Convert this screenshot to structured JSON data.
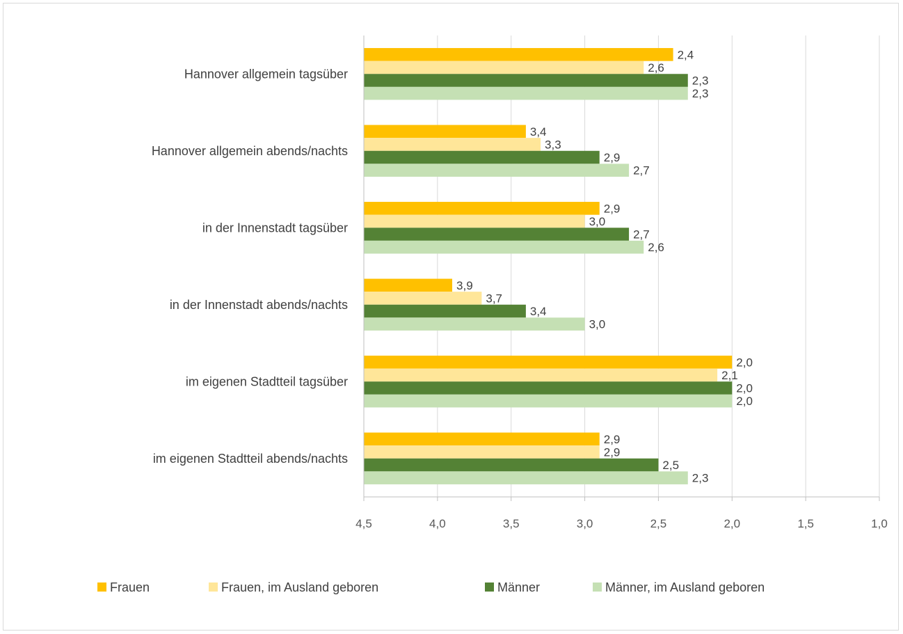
{
  "chart_data": {
    "type": "bar",
    "orientation": "horizontal",
    "x_axis_reversed": true,
    "xlim": [
      1.0,
      4.5
    ],
    "x_ticks": [
      4.5,
      4.0,
      3.5,
      3.0,
      2.5,
      2.0,
      1.5,
      1.0
    ],
    "x_tick_labels": [
      "4,5",
      "4,0",
      "3,5",
      "3,0",
      "2,5",
      "2,0",
      "1,5",
      "1,0"
    ],
    "grid": true,
    "legend_position": "bottom",
    "categories": [
      "Hannover allgemein tagsüber",
      "Hannover allgemein abends/nachts",
      "in der Innenstadt tagsüber",
      "in der Innenstadt abends/nachts",
      "im eigenen Stadtteil tagsüber",
      "im eigenen Stadtteil abends/nachts"
    ],
    "series": [
      {
        "name": "Frauen",
        "color": "#FFC000",
        "values": [
          2.4,
          3.4,
          2.9,
          3.9,
          2.0,
          2.9
        ],
        "labels": [
          "2,4",
          "3,4",
          "2,9",
          "3,9",
          "2,0",
          "2,9"
        ]
      },
      {
        "name": "Frauen, im Ausland geboren",
        "color": "#FFE699",
        "values": [
          2.6,
          3.3,
          3.0,
          3.7,
          2.1,
          2.9
        ],
        "labels": [
          "2,6",
          "3,3",
          "3,0",
          "3,7",
          "2,1",
          "2,9"
        ]
      },
      {
        "name": "Männer",
        "color": "#548235",
        "values": [
          2.3,
          2.9,
          2.7,
          3.4,
          2.0,
          2.5
        ],
        "labels": [
          "2,3",
          "2,9",
          "2,7",
          "3,4",
          "2,0",
          "2,5"
        ]
      },
      {
        "name": "Männer, im Ausland geboren",
        "color": "#C5E0B4",
        "values": [
          2.3,
          2.7,
          2.6,
          3.0,
          2.0,
          2.3
        ],
        "labels": [
          "2,3",
          "2,7",
          "2,6",
          "3,0",
          "2,0",
          "2,3"
        ]
      }
    ]
  }
}
